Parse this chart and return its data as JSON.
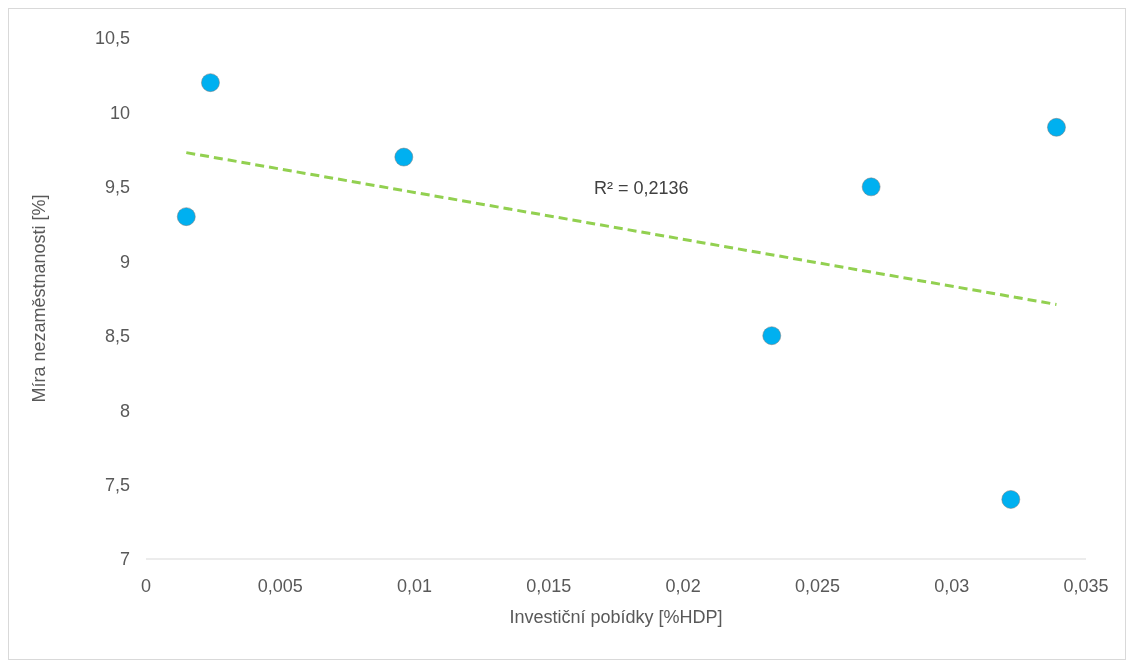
{
  "chart_data": {
    "type": "scatter",
    "xlabel": "Investiční pobídky [%HDP]",
    "ylabel": "Míra nezaměstnanosti [%]",
    "annotations": [
      "R² = 0,2136"
    ],
    "xlim": [
      0,
      0.035
    ],
    "xticks": [
      0,
      {
        "value": 0.005,
        "label": "0,005"
      },
      {
        "value": 0.01,
        "label": "0,01"
      },
      {
        "value": 0.015,
        "label": "0,015"
      },
      {
        "value": 0.02,
        "label": "0,02"
      },
      {
        "value": 0.025,
        "label": "0,025"
      },
      {
        "value": 0.03,
        "label": "0,03"
      },
      {
        "value": 0.035,
        "label": "0,035"
      }
    ],
    "ylim": [
      7,
      10.5
    ],
    "yticks": [
      7,
      {
        "value": 7.5,
        "label": "7,5"
      },
      8,
      {
        "value": 8.5,
        "label": "8,5"
      },
      9,
      {
        "value": 9.5,
        "label": "9,5"
      },
      10,
      {
        "value": 10.5,
        "label": "10,5"
      }
    ],
    "series": [
      {
        "color": "#00b0f0",
        "marker": "circle",
        "x": [
          0.0015,
          0.0024,
          0.0096,
          0.0233,
          0.027,
          0.0322,
          0.0339
        ],
        "values": [
          9.3,
          10.2,
          9.7,
          8.5,
          9.5,
          7.4,
          9.9
        ]
      },
      {
        "type": "line",
        "color": "#92d050",
        "marker": "none",
        "line_style": "dashed",
        "x": [
          0.0015,
          0.0339
        ],
        "values": [
          9.73,
          8.71
        ]
      }
    ]
  }
}
